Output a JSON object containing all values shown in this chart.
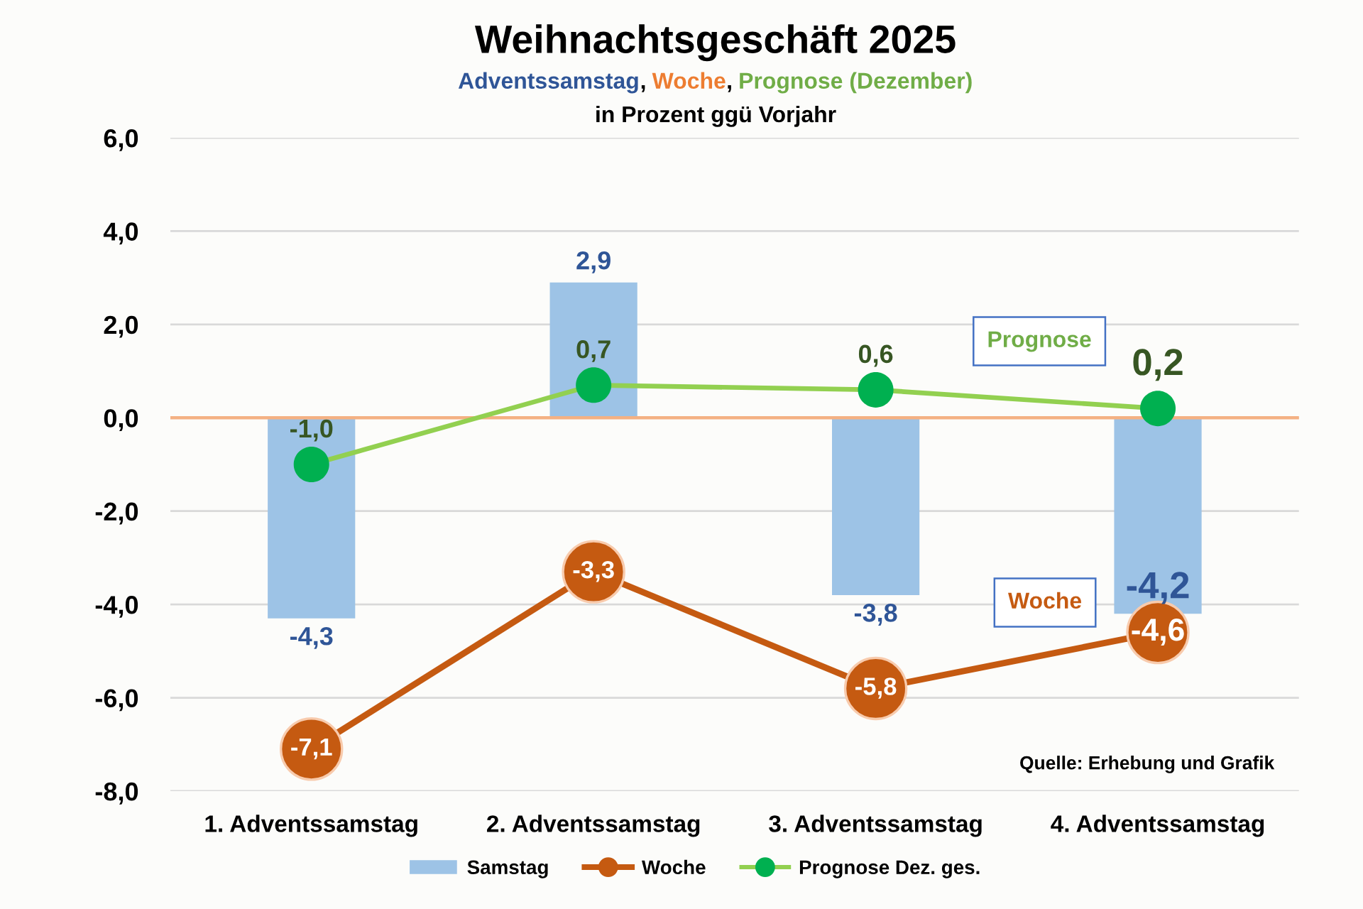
{
  "chart_data": {
    "type": "bar",
    "title": "Weihnachtsgeschäft 2025",
    "subtitle": "Adventssamstag, Woche, Prognose (Dezember)",
    "annotations": [
      "in Prozent ggü Vorjahr",
      "Prognose",
      "Woche",
      "Quelle: Erhebung und Grafik"
    ],
    "categories": [
      "1. Adventssamstag",
      "2. Adventssamstag",
      "3. Adventssamstag",
      "4. Adventssamstag"
    ],
    "series": [
      {
        "name": "Samstag",
        "color": "#9dc3e6",
        "values": [
          -4.3,
          2.9,
          -3.8,
          -4.2
        ],
        "value_labels": [
          "-4,3",
          "2,9",
          "-3,8",
          "-4,2"
        ]
      },
      {
        "name": "Woche",
        "type": "line",
        "color": "#c55a11",
        "values": [
          -7.1,
          -3.3,
          -5.8,
          -4.6
        ],
        "value_labels": [
          "-7,1",
          "-3,3",
          "-5,8",
          "-4,6"
        ]
      },
      {
        "name": "Prognose Dez. ges.",
        "type": "line",
        "color": "#92d050",
        "colors": [
          "#00b050",
          "#00b050",
          "#00b050",
          "#00b050"
        ],
        "values": [
          -1.0,
          0.7,
          0.6,
          0.2
        ],
        "value_labels": [
          "-1,0",
          "0,7",
          "0,6",
          "0,2"
        ]
      }
    ],
    "ylim": [
      -8,
      6
    ],
    "yticks": [
      {
        "value": -8,
        "label": "-8,0"
      },
      {
        "value": -6,
        "label": "-6,0"
      },
      {
        "value": -4,
        "label": "-4,0"
      },
      {
        "value": -2,
        "label": "-2,0"
      },
      {
        "value": 0,
        "label": "0,0"
      },
      {
        "value": 2,
        "label": "2,0"
      },
      {
        "value": 4,
        "label": "4,0"
      },
      {
        "value": 6,
        "label": "6,0"
      }
    ],
    "grid": "y",
    "legend": "bottom",
    "marker": "circle",
    "ref_lines": [
      {
        "axis": "y",
        "value": 0,
        "color": "#f4b183"
      }
    ]
  }
}
